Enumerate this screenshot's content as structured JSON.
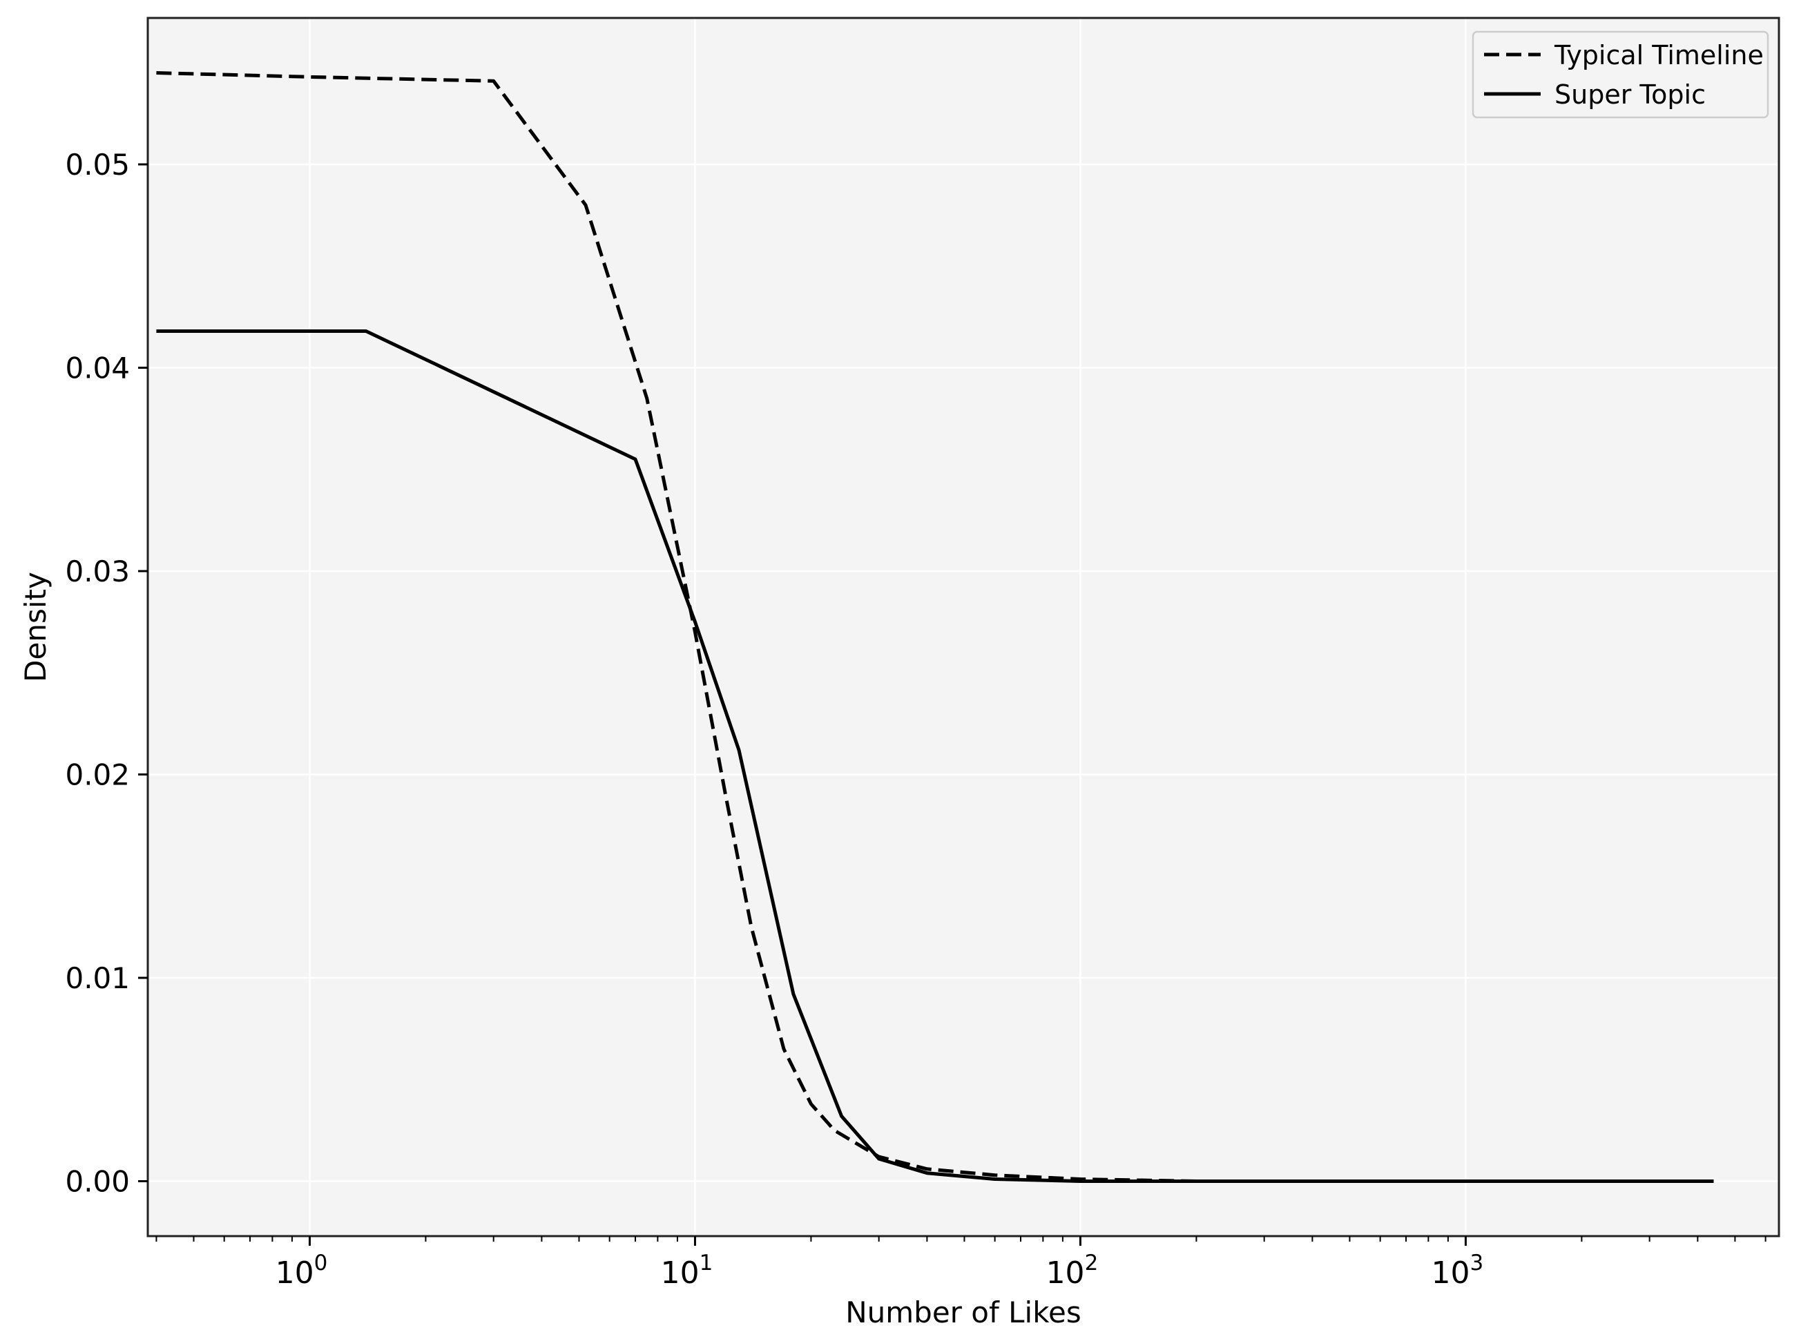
{
  "chart_data": {
    "type": "line",
    "title": "",
    "xlabel": "Number of Likes",
    "ylabel": "Density",
    "xscale": "log",
    "xlim": [
      0.38,
      6500
    ],
    "ylim": [
      -0.0027,
      0.0572
    ],
    "x_ticks": [
      {
        "value": 1,
        "base": "10",
        "exp": "0"
      },
      {
        "value": 10,
        "base": "10",
        "exp": "1"
      },
      {
        "value": 100,
        "base": "10",
        "exp": "2"
      },
      {
        "value": 1000,
        "base": "10",
        "exp": "3"
      }
    ],
    "y_ticks": [
      {
        "value": 0.0,
        "label": "0.00"
      },
      {
        "value": 0.01,
        "label": "0.01"
      },
      {
        "value": 0.02,
        "label": "0.02"
      },
      {
        "value": 0.03,
        "label": "0.03"
      },
      {
        "value": 0.04,
        "label": "0.04"
      },
      {
        "value": 0.05,
        "label": "0.05"
      }
    ],
    "grid": true,
    "legend_position": "top-right",
    "colors": {
      "plot_background": "#f4f4f4",
      "grid": "#ffffff",
      "line": "#000000",
      "frame": "#222222"
    },
    "series": [
      {
        "name": "Typical Timeline",
        "style": "dashed",
        "x": [
          0.4,
          1.0,
          3.0,
          5.2,
          7.5,
          10,
          12,
          14,
          17,
          20,
          23,
          30,
          40,
          60,
          100,
          200,
          500,
          1000,
          4400
        ],
        "y": [
          0.0545,
          0.0543,
          0.0541,
          0.048,
          0.0385,
          0.027,
          0.019,
          0.0125,
          0.0065,
          0.0038,
          0.0025,
          0.0012,
          0.0006,
          0.0003,
          0.0001,
          0.0,
          0.0,
          0.0,
          0.0
        ]
      },
      {
        "name": "Super Topic",
        "style": "solid",
        "x": [
          0.4,
          1.4,
          7.0,
          10,
          13,
          18,
          24,
          30,
          40,
          60,
          100,
          200,
          500,
          1000,
          4400
        ],
        "y": [
          0.0418,
          0.0418,
          0.0355,
          0.0275,
          0.0212,
          0.0092,
          0.0032,
          0.0011,
          0.0004,
          0.0001,
          0.0,
          0.0,
          0.0,
          0.0,
          0.0
        ]
      }
    ]
  }
}
